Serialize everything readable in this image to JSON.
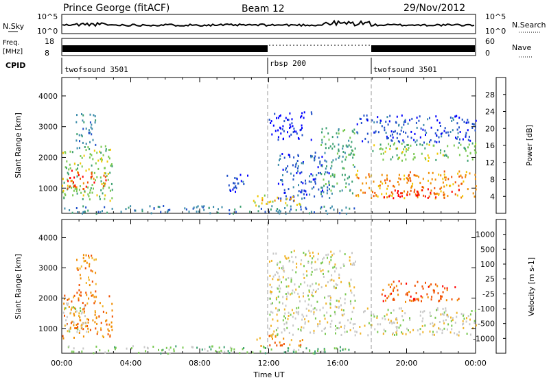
{
  "header": {
    "station": "Prince George (fitACF)",
    "beam": "Beam 12",
    "date": "29/Nov/2012"
  },
  "top_panels": {
    "nsky_label": "N.Sky",
    "nsky_ticks": [
      "10^5",
      "10^0"
    ],
    "nsearch_label": "N.Search",
    "nsearch_ticks": [
      "10^5",
      "10^0"
    ],
    "freq_label_1": "Freq.",
    "freq_label_2": "[MHz]",
    "freq_ticks": [
      "18",
      "8"
    ],
    "nave_label": "Nave",
    "nave_ticks": [
      "60",
      "0"
    ],
    "cpid_label": "CPID",
    "cpid_segments": [
      {
        "name": "twofsound 3501",
        "start_hour": 0,
        "end_hour": 12
      },
      {
        "name": "rbsp 200",
        "start_hour": 12,
        "end_hour": 18
      },
      {
        "name": "twofsound 3501",
        "start_hour": 18,
        "end_hour": 24
      }
    ]
  },
  "chart_data": [
    {
      "type": "heatmap",
      "title": "Power",
      "ylabel": "Slant Range [km]",
      "xlabel": "Time UT",
      "xlim": [
        0,
        24
      ],
      "ylim": [
        180,
        4600
      ],
      "x_ticks": [
        "00:00",
        "04:00",
        "08:00",
        "12:00",
        "16:00",
        "20:00",
        "00:00"
      ],
      "y_ticks": [
        1000,
        2000,
        3000,
        4000
      ],
      "colorbar": {
        "label": "Power [dB]",
        "ticks": [
          "28",
          "24",
          "20",
          "16",
          "12",
          "8",
          "4"
        ],
        "colors": [
          "#0000ff",
          "#2050c8",
          "#3c8caa",
          "#3ca070",
          "#78c850",
          "#f0c800",
          "#f08c00",
          "#f05000",
          "#ff0000"
        ]
      },
      "regions": [
        {
          "t0": 0.0,
          "t1": 2.9,
          "r0": 600,
          "r1": 2400,
          "level": 4
        },
        {
          "t0": 0.3,
          "t1": 2.6,
          "r0": 1000,
          "r1": 1600,
          "level": 7
        },
        {
          "t0": 0.8,
          "t1": 2.0,
          "r0": 2300,
          "r1": 3500,
          "level": 2
        },
        {
          "t0": 9.5,
          "t1": 10.8,
          "r0": 900,
          "r1": 1600,
          "level": 1
        },
        {
          "t0": 12.5,
          "t1": 15.5,
          "r0": 600,
          "r1": 2200,
          "level": 1
        },
        {
          "t0": 12.0,
          "t1": 14.5,
          "r0": 2600,
          "r1": 3500,
          "level": 0
        },
        {
          "t0": 15.0,
          "t1": 17.0,
          "r0": 800,
          "r1": 3000,
          "level": 3
        },
        {
          "t0": 17.0,
          "t1": 24.0,
          "r0": 700,
          "r1": 1600,
          "level": 6
        },
        {
          "t0": 18.5,
          "t1": 23.0,
          "r0": 700,
          "r1": 1000,
          "level": 8
        },
        {
          "t0": 18.0,
          "t1": 24.0,
          "r0": 1900,
          "r1": 2500,
          "level": 4
        },
        {
          "t0": 17.0,
          "t1": 24.0,
          "r0": 2500,
          "r1": 3400,
          "level": 1
        },
        {
          "t0": 0.0,
          "t1": 17.0,
          "r0": 200,
          "r1": 450,
          "level": 2
        },
        {
          "t0": 11.0,
          "t1": 14.0,
          "r0": 450,
          "r1": 800,
          "level": 5
        }
      ]
    },
    {
      "type": "heatmap",
      "title": "Velocity",
      "ylabel": "Slant Range [km]",
      "xlabel": "Time UT",
      "xlim": [
        0,
        24
      ],
      "ylim": [
        180,
        4600
      ],
      "x_ticks": [
        "00:00",
        "04:00",
        "08:00",
        "12:00",
        "16:00",
        "20:00",
        "00:00"
      ],
      "y_ticks": [
        1000,
        2000,
        3000,
        4000
      ],
      "colorbar": {
        "label": "Velocity [m s-1]",
        "ticks": [
          "1000",
          "500",
          "100",
          "25",
          "-25",
          "-100",
          "-500",
          "-1000"
        ],
        "colors": [
          "#ff0000",
          "#f05000",
          "#f08c00",
          "#f0b428",
          "#c8c8c8",
          "#78c850",
          "#3ca070",
          "#2050c8",
          "#0000ff"
        ]
      },
      "regions": [
        {
          "t0": 0.0,
          "t1": 2.9,
          "r0": 700,
          "r1": 2300,
          "level": 2
        },
        {
          "t0": 0.0,
          "t1": 1.5,
          "r0": 900,
          "r1": 1900,
          "level": 4
        },
        {
          "t0": 0.8,
          "t1": 2.0,
          "r0": 2400,
          "r1": 3500,
          "level": 2
        },
        {
          "t0": 12.0,
          "t1": 17.0,
          "r0": 800,
          "r1": 3600,
          "level": 4
        },
        {
          "t0": 17.0,
          "t1": 24.0,
          "r0": 800,
          "r1": 1700,
          "level": 4
        },
        {
          "t0": 18.5,
          "t1": 23.0,
          "r0": 1900,
          "r1": 2600,
          "level": 1
        },
        {
          "t0": 0.0,
          "t1": 17.0,
          "r0": 200,
          "r1": 450,
          "level": 5
        },
        {
          "t0": 11.0,
          "t1": 14.0,
          "r0": 450,
          "r1": 800,
          "level": 2
        }
      ]
    }
  ]
}
